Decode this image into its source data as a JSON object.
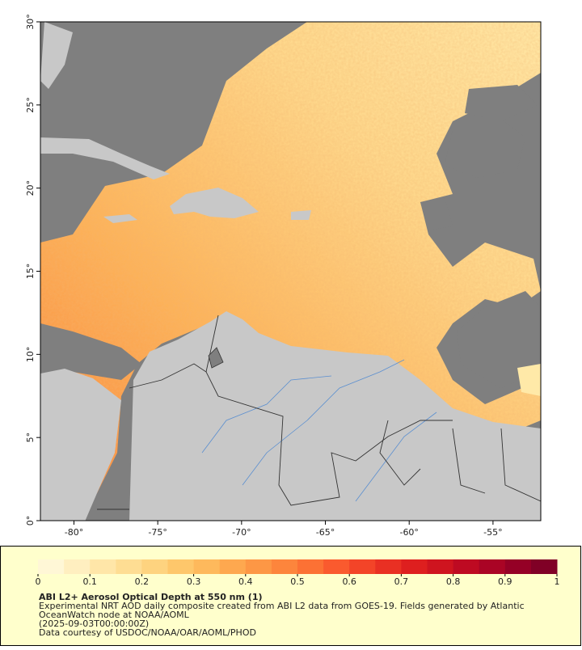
{
  "map": {
    "xlim": [
      -82,
      -52.15
    ],
    "ylim": [
      0,
      30
    ],
    "xticks": [
      {
        "value": -80,
        "label": "-80°"
      },
      {
        "value": -75,
        "label": "-75°"
      },
      {
        "value": -70,
        "label": "-70°"
      },
      {
        "value": -65,
        "label": "-65°"
      },
      {
        "value": -60,
        "label": "-60°"
      },
      {
        "value": -55,
        "label": "-55°"
      }
    ],
    "yticks": [
      {
        "value": 0,
        "label": "0°"
      },
      {
        "value": 5,
        "label": "5°"
      },
      {
        "value": 10,
        "label": "10°"
      },
      {
        "value": 15,
        "label": "15°"
      },
      {
        "value": 20,
        "label": "20°"
      },
      {
        "value": 25,
        "label": "25°"
      },
      {
        "value": 30,
        "label": "30°"
      }
    ]
  },
  "colorbar": {
    "range": [
      0,
      1
    ],
    "ticks": [
      0,
      0.1,
      0.2,
      0.3,
      0.4,
      0.5,
      0.6,
      0.7,
      0.8,
      0.9,
      1
    ],
    "colors": [
      "#fff7d6",
      "#ffefc0",
      "#ffe6a8",
      "#fedd93",
      "#fed37f",
      "#fec76b",
      "#feb95c",
      "#fea84f",
      "#fd9745",
      "#fd853c",
      "#fc7134",
      "#fa5a2e",
      "#f34428",
      "#e93023",
      "#de1f1f",
      "#cf141f",
      "#be0a22",
      "#aa0425",
      "#950026",
      "#800026"
    ]
  },
  "caption": {
    "title": "ABI L2+ Aerosol Optical Depth at 550 nm (1)",
    "lines": [
      "Experimental NRT AOD daily composite created from ABI L2 data from GOES-19. Fields generated by Atlantic",
      "OceanWatch node at NOAA/AOML",
      "(2025-09-03T00:00:00Z)",
      "Data courtesy of USDOC/NOAA/OAR/AOML/PHOD"
    ]
  }
}
